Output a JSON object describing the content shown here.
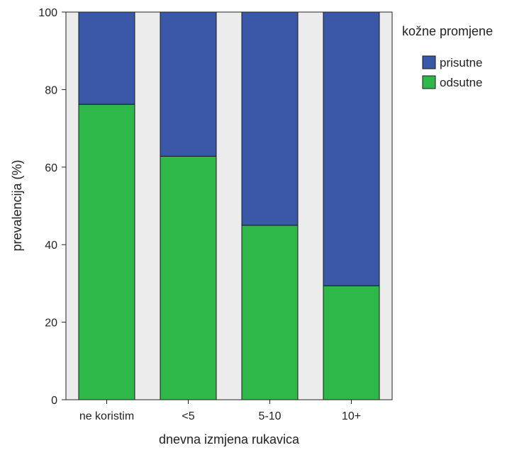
{
  "chart_data": {
    "type": "bar",
    "stacked": true,
    "categories": [
      "ne koristim",
      "<5",
      "5-10",
      "10+"
    ],
    "series": [
      {
        "name": "odsutne",
        "values": [
          76.2,
          62.8,
          45.0,
          29.4
        ],
        "color": "#2fb84a"
      },
      {
        "name": "prisutne",
        "values": [
          23.8,
          37.2,
          55.0,
          70.6
        ],
        "color": "#3b58a8"
      }
    ],
    "title": "",
    "xlabel": "dnevna izmjena rukavica",
    "ylabel": "prevalencija (%)",
    "ylim": [
      0,
      100
    ],
    "yticks": [
      0,
      20,
      40,
      60,
      80,
      100
    ],
    "grid": false,
    "plot_background": "#ececec",
    "legend": {
      "title": "kožne promjene",
      "placement": "right",
      "entries": [
        "prisutne",
        "odsutne"
      ]
    }
  }
}
